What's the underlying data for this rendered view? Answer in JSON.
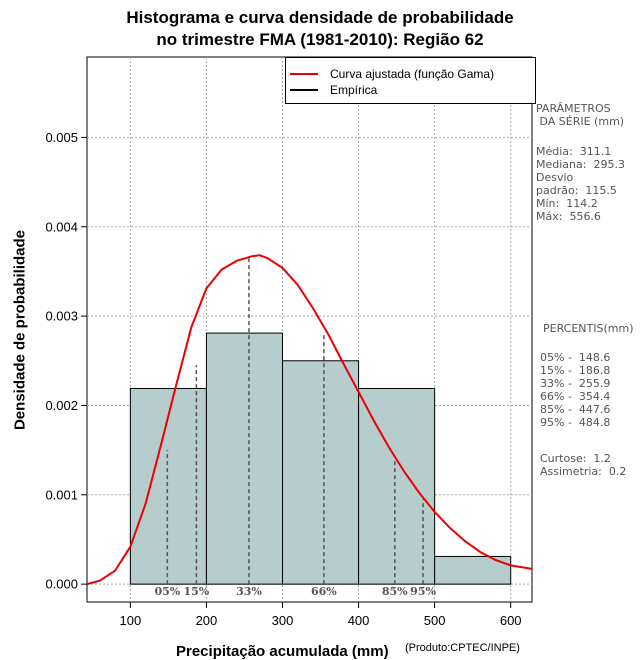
{
  "title_line1": "Histograma e curva densidade de probabilidade",
  "title_line2": "no trimestre FMA (1981-2010): Região 62",
  "credit": "(Produto:CPTEC/INPE)",
  "legend": {
    "fitted": "Curva ajustada (função Gama)",
    "empirical": "Empírica"
  },
  "params": {
    "header": "PARÂMETROS\n DA SÉRIE (mm)",
    "lines": "Média:  311.1\nMediana:  295.3\nDesvio\npadrão:  115.5\nMín:  114.2\nMáx:  556.6"
  },
  "percentis": {
    "header": "PERCENTIS(mm)",
    "lines": "05% -  148.6\n15% -  186.8\n33% -  255.9\n66% -  354.4\n85% -  447.6\n95% -  484.8",
    "extra": "Curtose:  1.2\nAssimetria:  0.2"
  },
  "colors": {
    "bar_fill": "#b5cdcd",
    "curve": "#ee0000",
    "percentile_line": "#555555",
    "grid": "#aaaaaa"
  },
  "chart_data": {
    "type": "bar",
    "title": "Histograma e curva densidade de probabilidade no trimestre FMA (1981-2010): Região 62",
    "xlabel": "Precipitação acumulada (mm)",
    "ylabel": "Densidade de probabilidade",
    "xlim": [
      43,
      628
    ],
    "ylim": [
      -0.0002,
      0.0059
    ],
    "xticks": [
      100,
      200,
      300,
      400,
      500,
      600
    ],
    "yticks": [
      0.0,
      0.001,
      0.002,
      0.003,
      0.004,
      0.005
    ],
    "ytick_labels": [
      "0.000",
      "0.001",
      "0.002",
      "0.003",
      "0.004",
      "0.005"
    ],
    "grid": true,
    "bins": [
      {
        "x0": 100,
        "x1": 200,
        "density": 0.00219
      },
      {
        "x0": 200,
        "x1": 300,
        "density": 0.00281
      },
      {
        "x0": 300,
        "x1": 400,
        "density": 0.0025
      },
      {
        "x0": 400,
        "x1": 500,
        "density": 0.00219
      },
      {
        "x0": 500,
        "x1": 600,
        "density": 0.00031
      }
    ],
    "curve": {
      "name": "Curva ajustada (função Gama)",
      "x": [
        43,
        60,
        80,
        100,
        120,
        140,
        160,
        180,
        200,
        220,
        240,
        260,
        270,
        280,
        300,
        320,
        340,
        360,
        380,
        400,
        420,
        440,
        460,
        480,
        500,
        520,
        540,
        560,
        580,
        600,
        628
      ],
      "y": [
        0.0,
        4e-05,
        0.00015,
        0.00042,
        0.0009,
        0.00155,
        0.00222,
        0.00287,
        0.00331,
        0.00352,
        0.00362,
        0.00367,
        0.00368,
        0.00365,
        0.00354,
        0.00335,
        0.00309,
        0.0028,
        0.00247,
        0.00215,
        0.00183,
        0.00153,
        0.00126,
        0.00102,
        0.00081,
        0.00063,
        0.00048,
        0.00036,
        0.00027,
        0.00021,
        0.00017
      ]
    },
    "percentiles": [
      {
        "label": "05%",
        "value": 148.6,
        "top": 0.0015
      },
      {
        "label": "15%",
        "value": 186.8,
        "top": 0.00245
      },
      {
        "label": "33%",
        "value": 255.9,
        "top": 0.00365
      },
      {
        "label": "66%",
        "value": 354.4,
        "top": 0.0028
      },
      {
        "label": "85%",
        "value": 447.6,
        "top": 0.0014
      },
      {
        "label": "95%",
        "value": 484.8,
        "top": 0.00095
      }
    ]
  }
}
